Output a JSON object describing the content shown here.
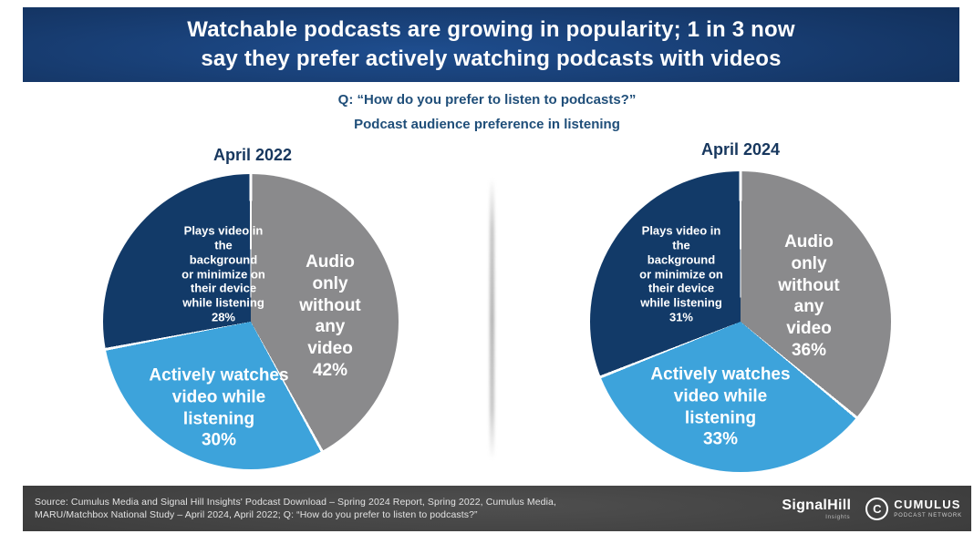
{
  "banner": {
    "title": "Watchable podcasts are growing in popularity; 1 in 3 now\nsay they prefer actively watching podcasts with videos"
  },
  "subtitle": {
    "question": "Q: “How do you prefer to listen to podcasts?”",
    "description": "Podcast audience preference in listening"
  },
  "chart_data": [
    {
      "type": "pie",
      "title": "April 2022",
      "start_angle": "12 o'clock",
      "direction": "clockwise",
      "slices": [
        {
          "label": "Audio only without any video",
          "value": 42,
          "unit": "%",
          "color": "#8A8A8C",
          "text": "Audio only\nwithout any\nvideo\n42%"
        },
        {
          "label": "Actively watches video while listening",
          "value": 30,
          "unit": "%",
          "color": "#3DA3DB",
          "text": "Actively watches\nvideo while\nlistening\n30%"
        },
        {
          "label": "Plays video in the background or minimize on their device while listening",
          "value": 28,
          "unit": "%",
          "color": "#123A68",
          "text": "Plays video in\nthe\nbackground\nor minimize on\ntheir device\nwhile listening\n28%"
        }
      ]
    },
    {
      "type": "pie",
      "title": "April 2024",
      "start_angle": "12 o'clock",
      "direction": "clockwise",
      "slices": [
        {
          "label": "Audio only without any video",
          "value": 36,
          "unit": "%",
          "color": "#8A8A8C",
          "text": "Audio only\nwithout any\nvideo\n36%"
        },
        {
          "label": "Actively watches video while listening",
          "value": 33,
          "unit": "%",
          "color": "#3DA3DB",
          "text": "Actively watches\nvideo while\nlistening\n33%"
        },
        {
          "label": "Plays video in the background or minimize on their device while listening",
          "value": 31,
          "unit": "%",
          "color": "#123A68",
          "text": "Plays video in\nthe\nbackground\nor minimize on\ntheir device\nwhile listening\n31%"
        }
      ]
    }
  ],
  "footer": {
    "source_text": "Source: Cumulus  Media and Signal Hill Insights' Podcast Download – Spring 2024 Report, Spring 2022, Cumulus  Media,\nMARU/Matchbox National Study – April 2024, April 2022; Q: “How do you  prefer to listen to podcasts?”",
    "logos": {
      "signal_hill": {
        "name": "SignalHill",
        "sub": "Insights"
      },
      "cumulus": {
        "icon": "C",
        "name": "CUMULUS",
        "sub": "PODCAST NETWORK"
      }
    }
  },
  "colors": {
    "banner_navy": "#16396B",
    "heading_navy": "#1F4E79",
    "slice_gray": "#8A8A8C",
    "slice_blue": "#3DA3DB",
    "slice_navy": "#123A68",
    "footer_bg": "#383838"
  }
}
